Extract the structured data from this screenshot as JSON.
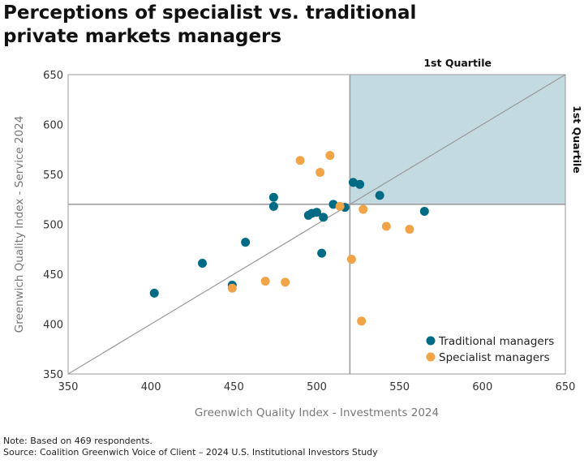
{
  "chart_data": {
    "type": "scatter",
    "title": "Perceptions of specialist vs. traditional private markets managers",
    "xlabel": "Greenwich Quality Index - Investments 2024",
    "ylabel": "Greenwich Quality Index - Service 2024",
    "xlim": [
      350,
      650
    ],
    "ylim": [
      350,
      650
    ],
    "xticks": [
      350,
      400,
      450,
      500,
      550,
      600,
      650
    ],
    "yticks": [
      350,
      400,
      450,
      500,
      550,
      600,
      650
    ],
    "quartile_threshold": {
      "x": 520,
      "y": 520
    },
    "quartile_label_top": "1st Quartile",
    "quartile_label_right": "1st Quartile",
    "quadrant_color": "#c3dbe0",
    "diagonal": true,
    "legend_position": "bottom-right",
    "series": [
      {
        "name": "Traditional managers",
        "color": "#006b84",
        "points": [
          [
            402,
            431
          ],
          [
            431,
            461
          ],
          [
            457,
            482
          ],
          [
            449,
            439
          ],
          [
            474,
            527
          ],
          [
            474,
            518
          ],
          [
            495,
            509
          ],
          [
            497,
            511
          ],
          [
            500,
            512
          ],
          [
            504,
            507
          ],
          [
            503,
            471
          ],
          [
            510,
            520
          ],
          [
            517,
            517
          ],
          [
            522,
            542
          ],
          [
            526,
            540
          ],
          [
            538,
            529
          ],
          [
            565,
            513
          ]
        ]
      },
      {
        "name": "Specialist managers",
        "color": "#f0a447",
        "points": [
          [
            490,
            564
          ],
          [
            508,
            569
          ],
          [
            502,
            552
          ],
          [
            514,
            518
          ],
          [
            528,
            515
          ],
          [
            542,
            498
          ],
          [
            556,
            495
          ],
          [
            521,
            465
          ],
          [
            527,
            403
          ],
          [
            469,
            443
          ],
          [
            481,
            442
          ],
          [
            449,
            436
          ]
        ]
      }
    ]
  },
  "note": "Note: Based on 469 respondents.",
  "source": "Source: Coalition Greenwich Voice of Client – 2024 U.S. Institutional Investors Study"
}
